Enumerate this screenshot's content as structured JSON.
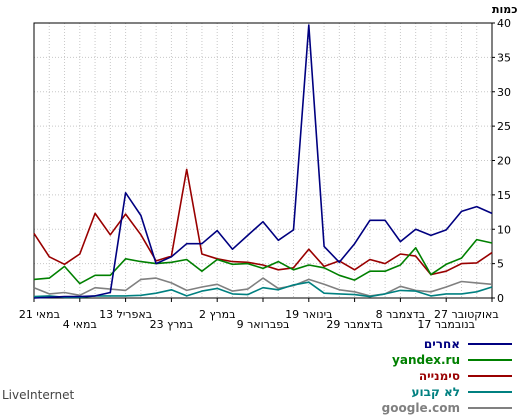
{
  "brand": "LiveInternet",
  "chart_data": {
    "type": "line",
    "ylabel": "כמות",
    "ylim": [
      0,
      40
    ],
    "yticks": [
      0,
      5,
      10,
      15,
      20,
      25,
      30,
      35,
      40
    ],
    "x_ticks": [
      "27 באוקטובר",
      "17 בנובמבר",
      "8 בדצמבר",
      "29 בדצמבר",
      "19 בינואר",
      "9 בפברואר",
      "2 במרץ",
      "23 במרץ",
      "13 באפריל",
      "4 במאי",
      "21 במאי"
    ],
    "x_direction": "right-to-left",
    "n_points": 31,
    "grid": true,
    "legend_position": "bottom-right",
    "series": [
      {
        "name": "אחרים",
        "color": "#000080",
        "values": [
          12.3,
          13.3,
          12.6,
          9.9,
          9.1,
          10.0,
          8.2,
          11.3,
          11.3,
          7.9,
          5.2,
          7.5,
          39.7,
          9.9,
          8.4,
          11.1,
          9.1,
          7.1,
          9.8,
          7.9,
          7.9,
          6.0,
          5.0,
          12.0,
          15.3,
          0.8,
          0.3,
          0.2,
          0.2,
          0.1,
          0.0
        ]
      },
      {
        "name": "yandex.ru",
        "color": "#008000",
        "values": [
          8.0,
          8.5,
          5.8,
          4.9,
          3.4,
          7.3,
          4.8,
          3.9,
          3.9,
          2.6,
          3.3,
          4.4,
          4.8,
          4.1,
          5.3,
          4.3,
          5.0,
          4.9,
          5.6,
          3.9,
          5.6,
          5.2,
          5.0,
          5.3,
          5.7,
          3.3,
          3.3,
          2.1,
          4.6,
          2.9,
          2.7
        ]
      },
      {
        "name": "סימנייה",
        "color": "#990000",
        "values": [
          6.6,
          5.1,
          5.0,
          3.9,
          3.4,
          6.1,
          6.4,
          5.0,
          5.6,
          4.1,
          5.4,
          4.6,
          7.1,
          4.4,
          4.1,
          4.8,
          5.2,
          5.3,
          5.7,
          6.4,
          18.7,
          6.1,
          5.4,
          9.2,
          12.2,
          9.2,
          12.3,
          6.4,
          4.9,
          6.0,
          9.4
        ]
      },
      {
        "name": "לא קבוע",
        "color": "#008080",
        "values": [
          1.6,
          0.9,
          0.6,
          0.6,
          0.3,
          1.0,
          1.1,
          0.6,
          0.2,
          0.5,
          0.6,
          0.7,
          2.3,
          1.9,
          1.2,
          1.5,
          0.5,
          0.6,
          1.4,
          1.0,
          0.3,
          1.2,
          0.7,
          0.4,
          0.3,
          0.3,
          0.3,
          0.1,
          0.1,
          0.3,
          0.2
        ]
      },
      {
        "name": "google.com",
        "color": "#808080",
        "values": [
          2.0,
          2.2,
          2.4,
          1.6,
          0.9,
          1.1,
          1.7,
          0.6,
          0.3,
          0.9,
          1.2,
          2.0,
          2.7,
          1.8,
          1.4,
          2.9,
          1.3,
          1.0,
          2.0,
          1.6,
          1.1,
          2.2,
          2.9,
          2.7,
          1.1,
          1.3,
          1.5,
          0.4,
          0.8,
          0.6,
          1.5
        ]
      }
    ]
  }
}
